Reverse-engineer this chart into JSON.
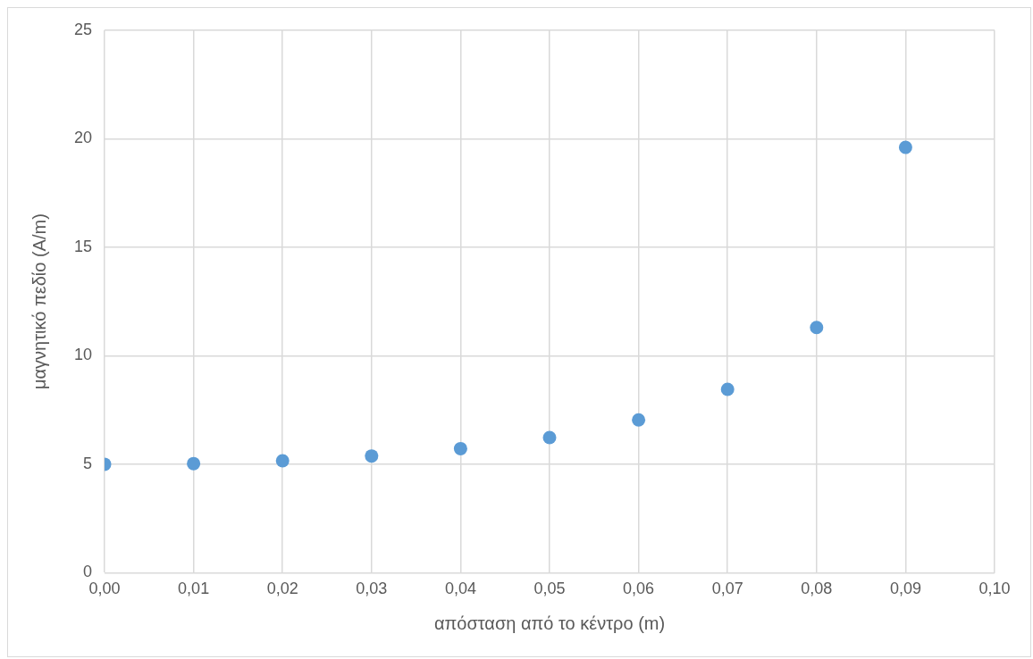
{
  "chart_data": {
    "type": "scatter",
    "xlabel": "απόσταση από το κέντρο (m)",
    "ylabel": "μαγνητικό πεδίο (A/m)",
    "x": [
      0,
      0.01,
      0.02,
      0.03,
      0.04,
      0.05,
      0.06,
      0.07,
      0.08,
      0.09
    ],
    "series": [
      {
        "color": "#5b9bd5",
        "values": [
          5.0,
          5.03,
          5.16,
          5.38,
          5.72,
          6.23,
          7.04,
          8.45,
          11.3,
          19.6
        ]
      }
    ],
    "xlim": [
      0,
      0.1
    ],
    "xticks": [
      {
        "value": 0,
        "label": "0,00"
      },
      {
        "value": 0.01,
        "label": "0,01"
      },
      {
        "value": 0.02,
        "label": "0,02"
      },
      {
        "value": 0.03,
        "label": "0,03"
      },
      {
        "value": 0.04,
        "label": "0,04"
      },
      {
        "value": 0.05,
        "label": "0,05"
      },
      {
        "value": 0.06,
        "label": "0,06"
      },
      {
        "value": 0.07,
        "label": "0,07"
      },
      {
        "value": 0.08,
        "label": "0,08"
      },
      {
        "value": 0.09,
        "label": "0,09"
      },
      {
        "value": 0.1,
        "label": "0,10"
      }
    ],
    "ylim": [
      0,
      25
    ],
    "yticks": [
      0,
      5,
      10,
      15,
      20,
      25
    ],
    "grid": true,
    "marker": "circle",
    "legend": false
  }
}
